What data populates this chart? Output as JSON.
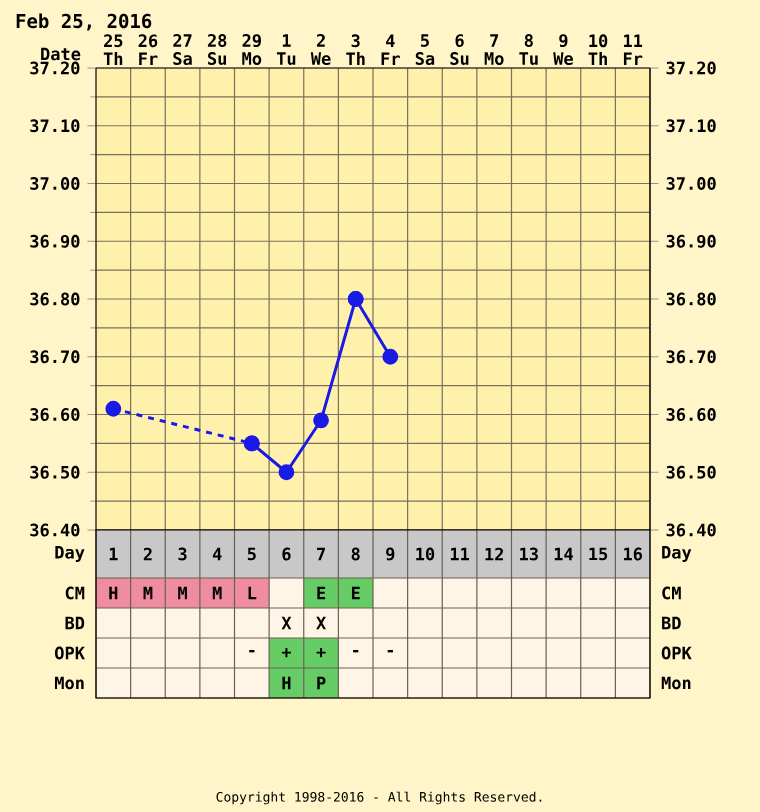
{
  "chart_data": [
    {
      "type": "line",
      "title": "Feb 25, 2016",
      "xlabel": "Date",
      "categories": [
        "25 Th",
        "26 Fr",
        "27 Sa",
        "28 Su",
        "29 Mo",
        "1 Tu",
        "2 We",
        "3 Th",
        "4 Fr",
        "5 Sa",
        "6 Su",
        "7 Mo",
        "8 Tu",
        "9 We",
        "10 Th",
        "11 Fr"
      ],
      "series": [
        {
          "color": "#1a1ae6",
          "line_style": "dashed",
          "marker": "circle",
          "values": [
            36.61,
            null,
            null,
            null,
            36.55,
            null,
            null,
            null,
            null,
            null,
            null,
            null,
            null,
            null,
            null,
            null
          ]
        },
        {
          "color": "#1a1ae6",
          "line_style": "solid",
          "marker": "circle",
          "values": [
            null,
            null,
            null,
            null,
            36.55,
            36.5,
            36.59,
            36.8,
            null,
            null,
            null,
            null,
            null,
            null,
            null,
            null
          ]
        },
        {
          "color": "#1a1ae6",
          "line_style": "solid",
          "marker": "circle",
          "values": [
            null,
            null,
            null,
            null,
            null,
            null,
            null,
            36.8,
            36.7,
            null,
            null,
            null,
            null,
            null,
            null,
            null
          ]
        }
      ],
      "ylim": [
        36.4,
        37.2
      ],
      "yticks": [
        {
          "value": 36.4,
          "label": "36.40"
        },
        {
          "value": 36.5,
          "label": "36.50"
        },
        {
          "value": 36.6,
          "label": "36.60"
        },
        {
          "value": 36.7,
          "label": "36.70"
        },
        {
          "value": 36.8,
          "label": "36.80"
        },
        {
          "value": 36.9,
          "label": "36.90"
        },
        {
          "value": 37.0,
          "label": "37.00"
        },
        {
          "value": 37.1,
          "label": "37.10"
        },
        {
          "value": 37.2,
          "label": "37.20"
        }
      ],
      "y2lim": [
        36.4,
        37.2
      ],
      "y2ticks": [
        {
          "value": 36.4,
          "label": "36.40"
        },
        {
          "value": 36.5,
          "label": "36.50"
        },
        {
          "value": 36.6,
          "label": "36.60"
        },
        {
          "value": 36.7,
          "label": "36.70"
        },
        {
          "value": 36.8,
          "label": "36.80"
        },
        {
          "value": 36.9,
          "label": "36.90"
        },
        {
          "value": 37.0,
          "label": "37.00"
        },
        {
          "value": 37.1,
          "label": "37.10"
        },
        {
          "value": 37.2,
          "label": "37.20"
        }
      ],
      "grid": true
    },
    {
      "type": "heatmap",
      "xlabel": "Day",
      "categories": [
        "1",
        "2",
        "3",
        "4",
        "5",
        "6",
        "7",
        "8",
        "9",
        "10",
        "11",
        "12",
        "13",
        "14",
        "15",
        "16"
      ],
      "y_categories": [
        "CM",
        "BD",
        "OPK",
        "Mon"
      ],
      "y2_categories": [
        "CM",
        "BD",
        "OPK",
        "Mon"
      ],
      "cells": [
        [
          null,
          null,
          null,
          null,
          null,
          null,
          null,
          null,
          null,
          null,
          null,
          null,
          null,
          null,
          null,
          null
        ],
        [
          null,
          null,
          null,
          null,
          null,
          null,
          null,
          null,
          null,
          null,
          null,
          null,
          null,
          null,
          null,
          null
        ],
        [
          null,
          null,
          null,
          null,
          null,
          null,
          null,
          null,
          null,
          null,
          null,
          null,
          null,
          null,
          null,
          null
        ],
        [
          null,
          null,
          null,
          null,
          null,
          null,
          null,
          null,
          null,
          null,
          null,
          null,
          null,
          null,
          null,
          null
        ]
      ],
      "cell_labels": [
        [
          "H",
          "M",
          "M",
          "M",
          "L",
          null,
          "E",
          "E",
          null,
          null,
          null,
          null,
          null,
          null,
          null,
          null
        ],
        [
          null,
          null,
          null,
          null,
          null,
          "X",
          "X",
          null,
          null,
          null,
          null,
          null,
          null,
          null,
          null,
          null
        ],
        [
          null,
          null,
          null,
          null,
          "-",
          "+",
          "+",
          "-",
          "-",
          null,
          null,
          null,
          null,
          null,
          null,
          null
        ],
        [
          null,
          null,
          null,
          null,
          null,
          "H",
          "P",
          null,
          null,
          null,
          null,
          null,
          null,
          null,
          null,
          null
        ]
      ],
      "colors": [
        [
          "#f08ca0",
          "#f08ca0",
          "#f08ca0",
          "#f08ca0",
          "#f08ca0",
          null,
          "#66cc66",
          "#66cc66",
          null,
          null,
          null,
          null,
          null,
          null,
          null,
          null
        ],
        [
          null,
          null,
          null,
          null,
          null,
          null,
          null,
          null,
          null,
          null,
          null,
          null,
          null,
          null,
          null,
          null
        ],
        [
          null,
          null,
          null,
          null,
          null,
          "#66cc66",
          "#66cc66",
          null,
          null,
          null,
          null,
          null,
          null,
          null,
          null,
          null
        ],
        [
          null,
          null,
          null,
          null,
          null,
          "#66cc66",
          "#66cc66",
          null,
          null,
          null,
          null,
          null,
          null,
          null,
          null,
          null
        ]
      ],
      "annotations": [
        "Copyright 1998-2016 - All Rights Reserved."
      ]
    }
  ]
}
